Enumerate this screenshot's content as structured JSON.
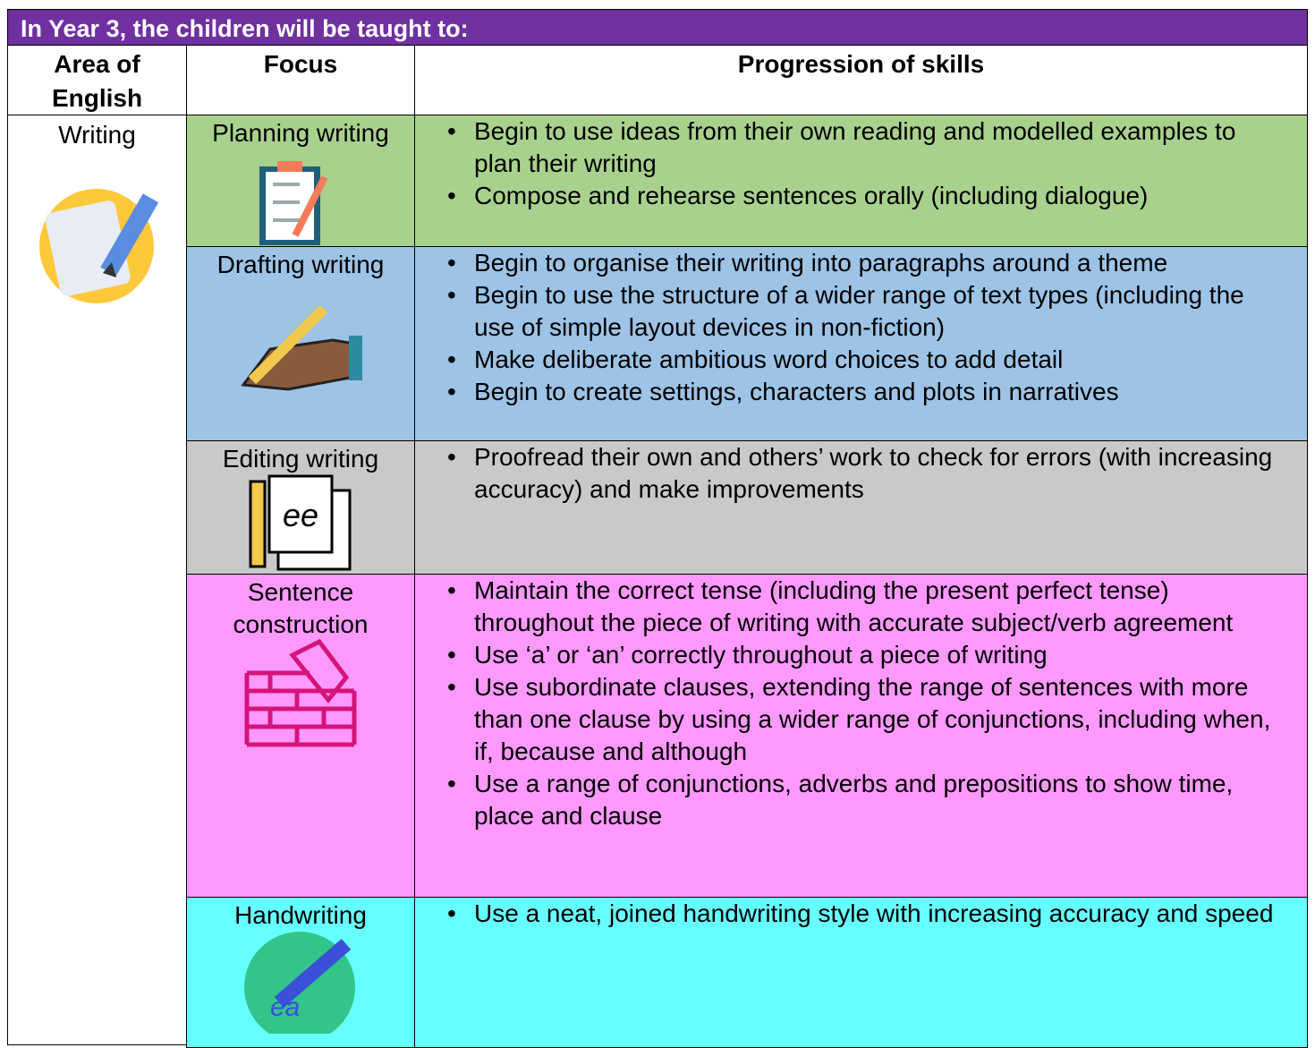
{
  "header": {
    "title": "In Year 3, the children will be taught to:"
  },
  "table": {
    "columns": [
      "Area of English",
      "Focus",
      "Progression of skills"
    ],
    "area": "Writing",
    "rows": [
      {
        "focus": "Planning writing",
        "skills": [
          "Begin to use ideas from their own reading and modelled examples to plan their writing",
          "Compose and rehearse sentences orally (including dialogue)"
        ]
      },
      {
        "focus": "Drafting writing",
        "skills": [
          "Begin to organise their writing into paragraphs around a theme",
          "Begin to use the structure of a wider range of text types (including the use of simple layout devices in non-fiction)",
          "Make deliberate ambitious word choices to add detail",
          "Begin to create settings, characters and plots in narratives"
        ]
      },
      {
        "focus": "Editing writing",
        "skills": [
          "Proofread their own and others’ work to check for errors (with increasing accuracy) and make improvements"
        ]
      },
      {
        "focus": "Sentence construction",
        "skills": [
          "Maintain the correct tense (including the present perfect tense) throughout the piece of writing with accurate subject/verb agreement",
          "Use ‘a’ or ‘an’ correctly throughout a piece of writing",
          "Use subordinate clauses, extending the range of sentences with more than one clause by using a wider range of conjunctions, including when, if, because and although",
          "Use a range of conjunctions, adverbs and prepositions to show time, place and clause"
        ]
      },
      {
        "focus": "Handwriting",
        "skills": [
          "Use a neat, joined handwriting style with increasing accuracy and speed"
        ]
      }
    ]
  }
}
